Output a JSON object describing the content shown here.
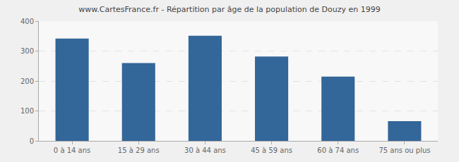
{
  "chart_data": {
    "type": "bar",
    "title": "www.CartesFrance.fr - Répartition par âge de la population de Douzy en 1999",
    "categories": [
      "0 à 14 ans",
      "15 à 29 ans",
      "30 à 44 ans",
      "45 à 59 ans",
      "60 à 74 ans",
      "75 ans ou plus"
    ],
    "values": [
      342,
      260,
      351,
      282,
      215,
      66
    ],
    "color": "#336699",
    "ylim": [
      0,
      400
    ],
    "yticks": [
      0,
      100,
      200,
      300,
      400
    ],
    "grid": true
  }
}
